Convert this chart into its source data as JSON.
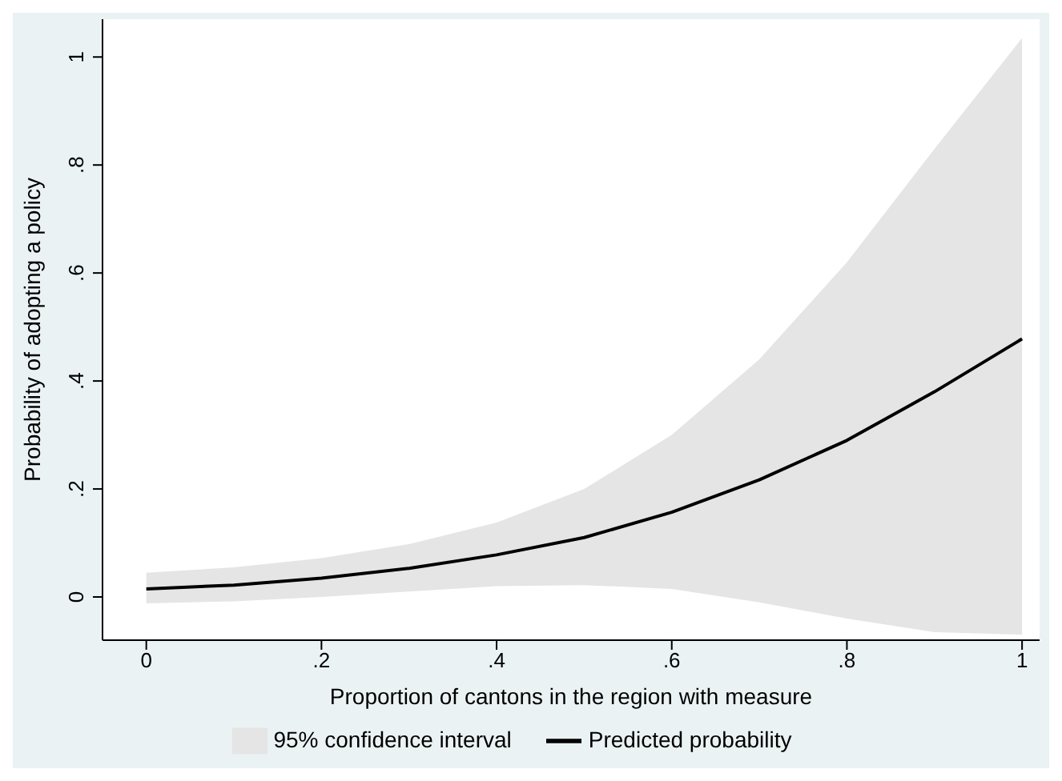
{
  "chart_data": {
    "type": "line",
    "xlabel": "Proportion of cantons in the region with measure",
    "ylabel": "Probability of adopting a policy",
    "x": [
      0,
      0.1,
      0.2,
      0.3,
      0.4,
      0.5,
      0.6,
      0.7,
      0.8,
      0.9,
      1
    ],
    "series": [
      {
        "name": "95% confidence interval",
        "type": "area",
        "color": "#e5e5e5",
        "values": [
          null,
          null,
          null,
          null,
          null,
          null,
          null,
          null,
          null,
          null,
          null
        ],
        "lower": [
          -0.012,
          -0.008,
          0.0,
          0.01,
          0.02,
          0.022,
          0.015,
          -0.01,
          -0.04,
          -0.065,
          -0.07
        ],
        "upper": [
          0.045,
          0.055,
          0.072,
          0.098,
          0.138,
          0.2,
          0.3,
          0.44,
          0.62,
          0.83,
          1.035
        ]
      },
      {
        "name": "Predicted probability",
        "color": "#000000",
        "values": [
          0.015,
          0.022,
          0.035,
          0.053,
          0.078,
          0.11,
          0.157,
          0.217,
          0.29,
          0.38,
          0.478
        ]
      }
    ],
    "xlim": [
      -0.05,
      1.02
    ],
    "xticks": [
      0,
      {
        "value": 0.2,
        "label": ".2"
      },
      {
        "value": 0.4,
        "label": ".4"
      },
      {
        "value": 0.6,
        "label": ".6"
      },
      {
        "value": 0.8,
        "label": ".8"
      },
      1
    ],
    "ylim": [
      -0.08,
      1.07
    ],
    "yticks": [
      0,
      {
        "value": 0.2,
        "label": ".2"
      },
      {
        "value": 0.4,
        "label": ".4"
      },
      {
        "value": 0.6,
        "label": ".6"
      },
      {
        "value": 0.8,
        "label": ".8"
      },
      1
    ],
    "grid": false,
    "legend": "bottom",
    "marker": "none",
    "line_style": "solid"
  }
}
